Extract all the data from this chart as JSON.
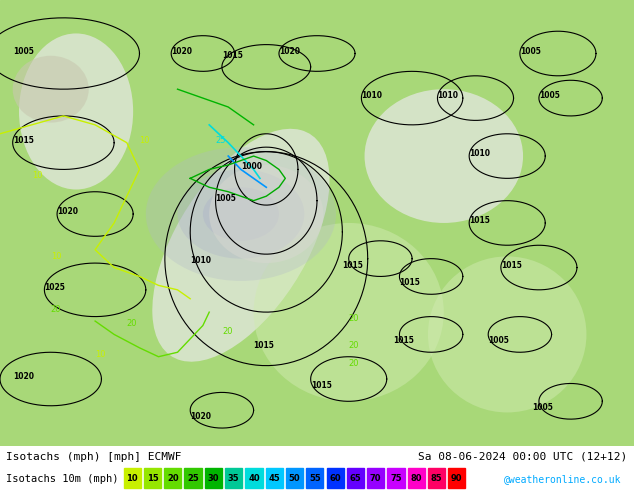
{
  "title_left": "Isotachs (mph) [mph] ECMWF",
  "title_right": "Sa 08-06-2024 00:00 UTC (12+12)",
  "legend_label": "Isotachs 10m (mph)",
  "legend_values": [
    10,
    15,
    20,
    25,
    30,
    35,
    40,
    45,
    50,
    55,
    60,
    65,
    70,
    75,
    80,
    85,
    90
  ],
  "legend_colors": [
    "#c8f000",
    "#96e600",
    "#64dc00",
    "#32c800",
    "#00b400",
    "#00c896",
    "#00dcdc",
    "#00c8ff",
    "#0096ff",
    "#0064ff",
    "#0032ff",
    "#6400ff",
    "#9600ff",
    "#c800ff",
    "#ff00c8",
    "#ff0064",
    "#ff0000"
  ],
  "credit": "@weatheronline.co.uk",
  "credit_color": "#00aaff",
  "bg_color": "#a8d878",
  "footer_bg": "#ffffff",
  "figsize": [
    6.34,
    4.9
  ],
  "dpi": 100
}
